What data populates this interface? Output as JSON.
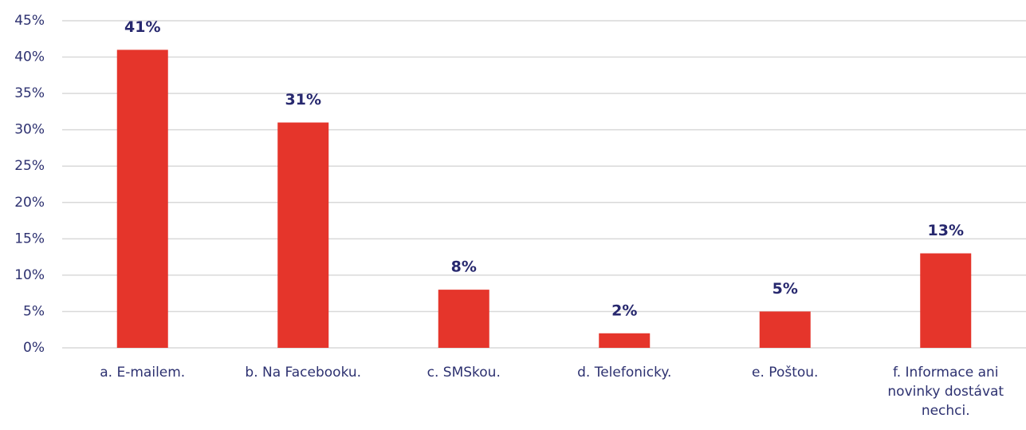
{
  "chart_data": {
    "type": "bar",
    "categories": [
      "a. E-mailem.",
      "b. Na Facebooku.",
      "c. SMSkou.",
      "d. Telefonicky.",
      "e. Poštou.",
      "f. Informace ani novinky dostávat nechci."
    ],
    "values": [
      41,
      31,
      8,
      2,
      5,
      13
    ],
    "value_labels": [
      "41%",
      "31%",
      "8%",
      "2%",
      "5%",
      "13%"
    ],
    "color": "#e5352b",
    "ylim": [
      0,
      45
    ],
    "yticks": [
      {
        "value": 0,
        "label": "0%"
      },
      {
        "value": 5,
        "label": "5%"
      },
      {
        "value": 10,
        "label": "10%"
      },
      {
        "value": 15,
        "label": "15%"
      },
      {
        "value": 20,
        "label": "20%"
      },
      {
        "value": 25,
        "label": "25%"
      },
      {
        "value": 30,
        "label": "30%"
      },
      {
        "value": 35,
        "label": "35%"
      },
      {
        "value": 40,
        "label": "40%"
      },
      {
        "value": 45,
        "label": "45%"
      }
    ],
    "grid": true
  }
}
